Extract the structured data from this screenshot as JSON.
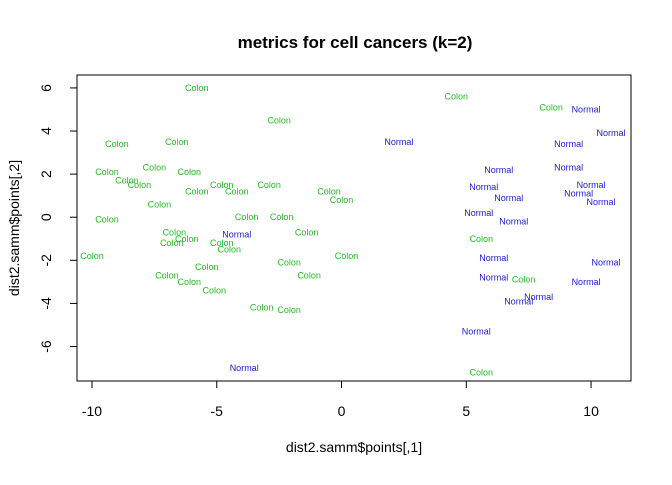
{
  "chart_data": {
    "type": "scatter",
    "title": "metrics for cell cancers (k=2)",
    "xlabel": "dist2.samm$points[,1]",
    "ylabel": "dist2.samm$points[,2]",
    "xlim": [
      -10.6,
      11.6
    ],
    "ylim": [
      -7.6,
      6.6
    ],
    "xticks": [
      -10,
      -5,
      0,
      5,
      10
    ],
    "yticks": [
      -6,
      -4,
      -2,
      0,
      2,
      4,
      6
    ],
    "grid": false,
    "colors": {
      "Colon": "#22bb22",
      "Normal": "#1a1ad6"
    },
    "points": [
      {
        "label": "Colon",
        "x": -5.8,
        "y": 6.0
      },
      {
        "label": "Colon",
        "x": 4.6,
        "y": 5.6
      },
      {
        "label": "Colon",
        "x": 8.4,
        "y": 5.1
      },
      {
        "label": "Normal",
        "x": 9.8,
        "y": 5.0
      },
      {
        "label": "Colon",
        "x": -2.5,
        "y": 4.5
      },
      {
        "label": "Normal",
        "x": 10.8,
        "y": 3.9
      },
      {
        "label": "Colon",
        "x": -9.0,
        "y": 3.4
      },
      {
        "label": "Colon",
        "x": -6.6,
        "y": 3.5
      },
      {
        "label": "Normal",
        "x": 2.3,
        "y": 3.5
      },
      {
        "label": "Normal",
        "x": 9.1,
        "y": 3.4
      },
      {
        "label": "Colon",
        "x": -7.5,
        "y": 2.3
      },
      {
        "label": "Colon",
        "x": -9.4,
        "y": 2.1
      },
      {
        "label": "Colon",
        "x": -6.1,
        "y": 2.1
      },
      {
        "label": "Normal",
        "x": 6.3,
        "y": 2.2
      },
      {
        "label": "Normal",
        "x": 9.1,
        "y": 2.3
      },
      {
        "label": "Colon",
        "x": -8.6,
        "y": 1.7
      },
      {
        "label": "Colon",
        "x": -8.1,
        "y": 1.5
      },
      {
        "label": "Colon",
        "x": -4.8,
        "y": 1.5
      },
      {
        "label": "Colon",
        "x": -2.9,
        "y": 1.5
      },
      {
        "label": "Normal",
        "x": 5.7,
        "y": 1.4
      },
      {
        "label": "Normal",
        "x": 10.0,
        "y": 1.5
      },
      {
        "label": "Colon",
        "x": -5.8,
        "y": 1.2
      },
      {
        "label": "Colon",
        "x": -4.2,
        "y": 1.2
      },
      {
        "label": "Colon",
        "x": -0.5,
        "y": 1.2
      },
      {
        "label": "Normal",
        "x": 9.5,
        "y": 1.1
      },
      {
        "label": "Colon",
        "x": 0.0,
        "y": 0.8
      },
      {
        "label": "Normal",
        "x": 6.7,
        "y": 0.9
      },
      {
        "label": "Normal",
        "x": 10.4,
        "y": 0.7
      },
      {
        "label": "Colon",
        "x": -7.3,
        "y": 0.6
      },
      {
        "label": "Normal",
        "x": 5.5,
        "y": 0.2
      },
      {
        "label": "Colon",
        "x": -9.4,
        "y": -0.1
      },
      {
        "label": "Colon",
        "x": -3.8,
        "y": 0.0
      },
      {
        "label": "Colon",
        "x": -2.4,
        "y": 0.0
      },
      {
        "label": "Normal",
        "x": 6.9,
        "y": -0.2
      },
      {
        "label": "Colon",
        "x": -6.7,
        "y": -0.7
      },
      {
        "label": "Colon",
        "x": -6.2,
        "y": -1.0
      },
      {
        "label": "Normal",
        "x": -4.2,
        "y": -0.8
      },
      {
        "label": "Colon",
        "x": -1.4,
        "y": -0.7
      },
      {
        "label": "Colon",
        "x": -6.8,
        "y": -1.2
      },
      {
        "label": "Colon",
        "x": -4.8,
        "y": -1.2
      },
      {
        "label": "Colon",
        "x": -4.5,
        "y": -1.5
      },
      {
        "label": "Colon",
        "x": 5.6,
        "y": -1.0
      },
      {
        "label": "Colon",
        "x": -10.0,
        "y": -1.8
      },
      {
        "label": "Colon",
        "x": 0.2,
        "y": -1.8
      },
      {
        "label": "Normal",
        "x": 6.1,
        "y": -1.9
      },
      {
        "label": "Normal",
        "x": 10.6,
        "y": -2.1
      },
      {
        "label": "Colon",
        "x": -2.1,
        "y": -2.1
      },
      {
        "label": "Colon",
        "x": -5.4,
        "y": -2.3
      },
      {
        "label": "Colon",
        "x": -7.0,
        "y": -2.7
      },
      {
        "label": "Colon",
        "x": -1.3,
        "y": -2.7
      },
      {
        "label": "Normal",
        "x": 6.1,
        "y": -2.8
      },
      {
        "label": "Colon",
        "x": 7.3,
        "y": -2.9
      },
      {
        "label": "Colon",
        "x": -6.1,
        "y": -3.0
      },
      {
        "label": "Normal",
        "x": 9.8,
        "y": -3.0
      },
      {
        "label": "Colon",
        "x": -5.1,
        "y": -3.4
      },
      {
        "label": "Normal",
        "x": 7.9,
        "y": -3.7
      },
      {
        "label": "Normal",
        "x": 7.1,
        "y": -3.9
      },
      {
        "label": "Colon",
        "x": -3.2,
        "y": -4.2
      },
      {
        "label": "Colon",
        "x": -2.1,
        "y": -4.3
      },
      {
        "label": "Normal",
        "x": 5.4,
        "y": -5.3
      },
      {
        "label": "Normal",
        "x": -3.9,
        "y": -7.0
      },
      {
        "label": "Colon",
        "x": 5.6,
        "y": -7.2
      }
    ]
  }
}
